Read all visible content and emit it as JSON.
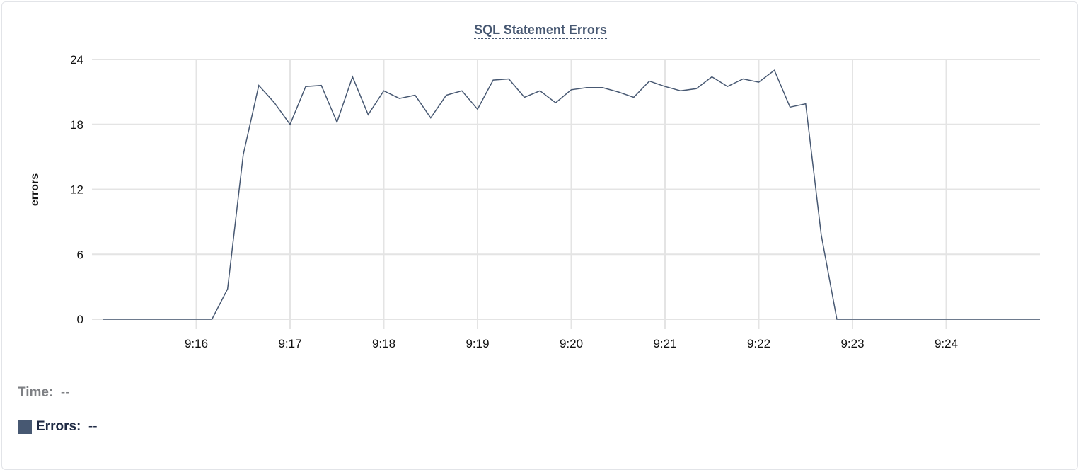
{
  "chart_data": {
    "type": "line",
    "title": "SQL Statement Errors",
    "ylabel": "errors",
    "xlabel": "",
    "ylim": [
      0,
      24
    ],
    "yticks": [
      "0",
      "6",
      "12",
      "18",
      "24"
    ],
    "xticks": [
      "9:16",
      "9:17",
      "9:18",
      "9:19",
      "9:20",
      "9:21",
      "9:22",
      "9:23",
      "9:24"
    ],
    "xrange": [
      "9:15:00",
      "9:25:00"
    ],
    "grid": true,
    "line_color": "#475872",
    "series": [
      {
        "name": "Errors",
        "x": [
          "9:15:00",
          "9:15:10",
          "9:15:20",
          "9:15:30",
          "9:15:40",
          "9:15:50",
          "9:16:00",
          "9:16:10",
          "9:16:20",
          "9:16:30",
          "9:16:40",
          "9:16:50",
          "9:17:00",
          "9:17:10",
          "9:17:20",
          "9:17:30",
          "9:17:40",
          "9:17:50",
          "9:18:00",
          "9:18:10",
          "9:18:20",
          "9:18:30",
          "9:18:40",
          "9:18:50",
          "9:19:00",
          "9:19:10",
          "9:19:20",
          "9:19:30",
          "9:19:40",
          "9:19:50",
          "9:20:00",
          "9:20:10",
          "9:20:20",
          "9:20:30",
          "9:20:40",
          "9:20:50",
          "9:21:00",
          "9:21:10",
          "9:21:20",
          "9:21:30",
          "9:21:40",
          "9:21:50",
          "9:22:00",
          "9:22:10",
          "9:22:20",
          "9:22:30",
          "9:22:40",
          "9:22:50",
          "9:23:00",
          "9:23:10",
          "9:23:20",
          "9:23:30",
          "9:23:40",
          "9:23:50",
          "9:24:00",
          "9:24:10",
          "9:24:20",
          "9:24:30",
          "9:24:40",
          "9:24:50",
          "9:25:00"
        ],
        "values": [
          0,
          0,
          0,
          0,
          0,
          0,
          0,
          0,
          2.8,
          15.2,
          21.6,
          20.0,
          18.0,
          21.5,
          21.6,
          18.2,
          22.4,
          18.9,
          21.1,
          20.4,
          20.7,
          18.6,
          20.7,
          21.1,
          19.4,
          22.1,
          22.2,
          20.5,
          21.1,
          20.0,
          21.2,
          21.4,
          21.4,
          21.0,
          20.5,
          22.0,
          21.5,
          21.1,
          21.3,
          22.4,
          21.5,
          22.2,
          21.9,
          23.0,
          19.6,
          19.9,
          7.8,
          0,
          0,
          0,
          0,
          0,
          0,
          0,
          0,
          0,
          0,
          0,
          0,
          0,
          0
        ]
      }
    ]
  },
  "legend": {
    "time_label": "Time:",
    "time_value": "--",
    "errors_label": "Errors:",
    "errors_value": "--"
  }
}
